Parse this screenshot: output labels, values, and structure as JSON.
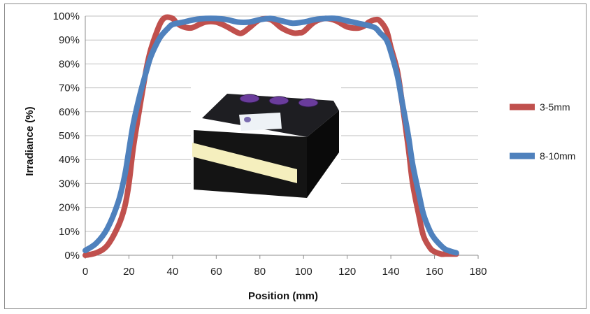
{
  "chart_data": {
    "type": "line",
    "title": "",
    "xlabel": "Position (mm)",
    "ylabel": "Irradiance (%)",
    "xlim": [
      0,
      180
    ],
    "ylim": [
      0,
      100
    ],
    "x_ticks": [
      "0",
      "20",
      "40",
      "60",
      "80",
      "100",
      "120",
      "140",
      "160",
      "180"
    ],
    "y_ticks": [
      "0%",
      "10%",
      "20%",
      "30%",
      "40%",
      "50%",
      "60%",
      "70%",
      "80%",
      "90%",
      "100%"
    ],
    "grid": "horizontal",
    "legend_position": "right",
    "series": [
      {
        "name": "3-5mm",
        "color": "#c0504d",
        "x": [
          0,
          5,
          10,
          15,
          18,
          20,
          22,
          25,
          28,
          30,
          33,
          35,
          37,
          40,
          42,
          45,
          48,
          50,
          55,
          60,
          65,
          70,
          72,
          75,
          80,
          85,
          90,
          95,
          98,
          100,
          105,
          110,
          115,
          120,
          125,
          128,
          130,
          133,
          135,
          138,
          140,
          143,
          145,
          148,
          150,
          153,
          155,
          158,
          160,
          163,
          165,
          168,
          170
        ],
        "values": [
          0,
          1,
          4,
          12,
          20,
          30,
          45,
          62,
          78,
          86,
          94,
          98,
          99.5,
          99,
          97,
          95.5,
          95,
          95.5,
          97.5,
          97.5,
          95.5,
          93,
          93,
          95,
          98.5,
          98.5,
          95,
          93,
          93,
          93.5,
          97.5,
          99,
          98,
          95.5,
          95,
          96,
          97.5,
          98.5,
          98,
          94,
          87,
          77,
          65,
          45,
          30,
          16,
          8,
          3,
          1.5,
          0.5,
          0.5,
          0.5,
          0.5
        ]
      },
      {
        "name": "8-10mm",
        "color": "#4f81bd",
        "x": [
          0,
          5,
          10,
          15,
          18,
          20,
          22,
          25,
          28,
          30,
          33,
          35,
          38,
          40,
          45,
          50,
          55,
          60,
          65,
          70,
          75,
          80,
          85,
          90,
          95,
          100,
          105,
          110,
          115,
          120,
          125,
          130,
          133,
          135,
          138,
          140,
          143,
          145,
          148,
          150,
          153,
          155,
          158,
          160,
          163,
          165,
          168,
          170
        ],
        "values": [
          2,
          5,
          11,
          22,
          33,
          44,
          55,
          67,
          77,
          83,
          89,
          92,
          95,
          96.5,
          97.5,
          98.5,
          99,
          99,
          98.5,
          97.5,
          97.5,
          98.5,
          99,
          98,
          97,
          97.5,
          98.5,
          99,
          99,
          98,
          97,
          96,
          95,
          93,
          90,
          85,
          75,
          65,
          50,
          38,
          25,
          17,
          10,
          7,
          4,
          2.5,
          1.5,
          1
        ]
      }
    ]
  },
  "inset_image": {
    "name": "uv-lamp-product-photo",
    "body_color": "#141414",
    "window_color": "#f5efbe",
    "fan_color": "#6a3c9c",
    "label_color": "#eef2f6"
  }
}
